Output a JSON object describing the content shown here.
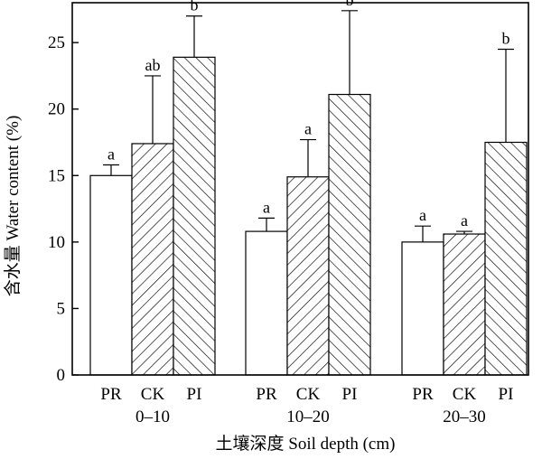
{
  "chart_data": {
    "type": "bar",
    "xlabel": "土壤深度 Soil depth (cm)",
    "ylabel": "含水量 Water content (%)",
    "ylim": [
      0,
      28
    ],
    "yticks": [
      0,
      5,
      10,
      15,
      20,
      25
    ],
    "grid": false,
    "legend": "none",
    "groups": [
      {
        "label": "0–10",
        "bars": [
          {
            "category": "PR",
            "value": 15.0,
            "error": 0.8,
            "significance": "a",
            "pattern": "open"
          },
          {
            "category": "CK",
            "value": 17.4,
            "error": 5.1,
            "significance": "ab",
            "pattern": "forward-hatch"
          },
          {
            "category": "PI",
            "value": 23.9,
            "error": 3.1,
            "significance": "b",
            "pattern": "back-hatch"
          }
        ]
      },
      {
        "label": "10–20",
        "bars": [
          {
            "category": "PR",
            "value": 10.8,
            "error": 1.0,
            "significance": "a",
            "pattern": "open"
          },
          {
            "category": "CK",
            "value": 14.9,
            "error": 2.8,
            "significance": "a",
            "pattern": "forward-hatch"
          },
          {
            "category": "PI",
            "value": 21.1,
            "error": 6.3,
            "significance": "b",
            "pattern": "back-hatch"
          }
        ]
      },
      {
        "label": "20–30",
        "bars": [
          {
            "category": "PR",
            "value": 10.0,
            "error": 1.2,
            "significance": "a",
            "pattern": "open"
          },
          {
            "category": "CK",
            "value": 10.6,
            "error": 0.2,
            "significance": "a",
            "pattern": "forward-hatch"
          },
          {
            "category": "PI",
            "value": 17.5,
            "error": 7.0,
            "significance": "b",
            "pattern": "back-hatch"
          }
        ]
      }
    ]
  }
}
